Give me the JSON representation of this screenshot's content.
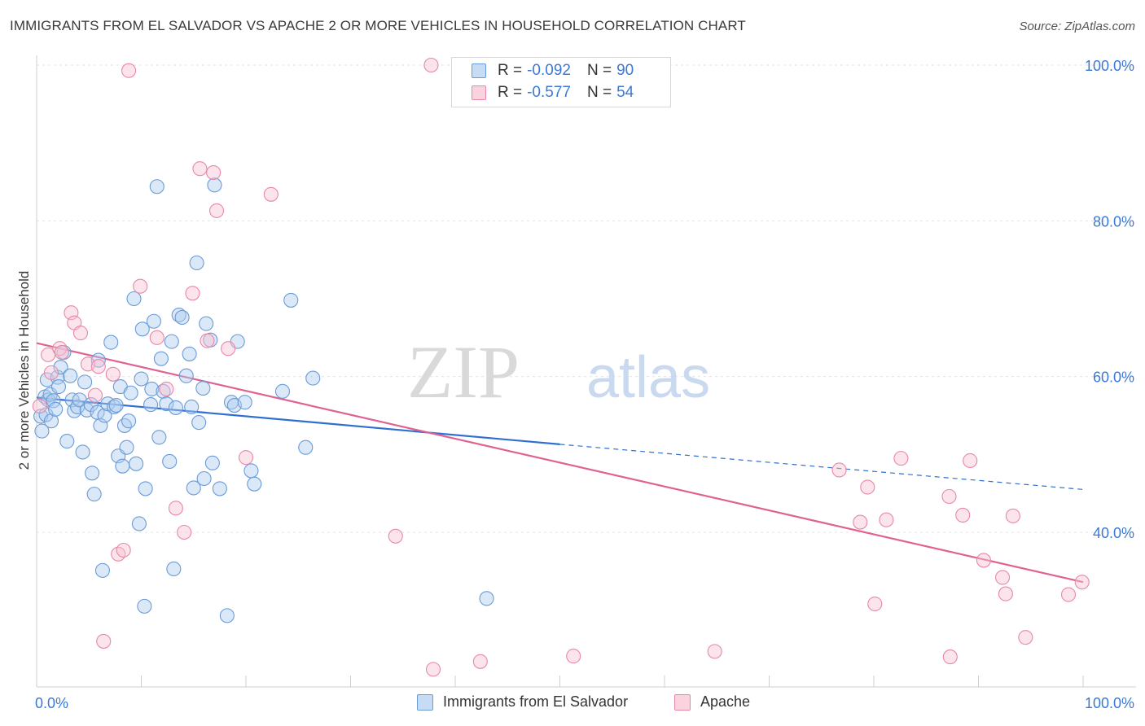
{
  "title": "IMMIGRANTS FROM EL SALVADOR VS APACHE 2 OR MORE VEHICLES IN HOUSEHOLD CORRELATION CHART",
  "source": "Source: ZipAtlas.com",
  "watermark": {
    "zip": "ZIP",
    "atlas": "atlas"
  },
  "legend_top": {
    "rows": [
      {
        "r_label": "R =",
        "r_value": "-0.092",
        "n_label": "N =",
        "n_value": "90",
        "color": "#9bbfe8",
        "border": "#6a9bd8"
      },
      {
        "r_label": "R =",
        "r_value": "-0.577",
        "n_label": "N =",
        "n_value": "54",
        "color": "#f4b7c9",
        "border": "#e888a6"
      }
    ]
  },
  "legend_bottom": [
    {
      "label": "Immigrants from El Salvador",
      "color": "#c5dcf4",
      "border": "#6a9bd8"
    },
    {
      "label": "Apache",
      "color": "#fbd3df",
      "border": "#e888a6"
    }
  ],
  "chart_data": {
    "type": "scatter",
    "xlabel": "",
    "ylabel": "2 or more Vehicles in Household",
    "xlim": [
      0,
      100
    ],
    "ylim": [
      18,
      102
    ],
    "x_tick_labels": [
      "0.0%",
      "100.0%"
    ],
    "y_tick_labels": [
      "40.0%",
      "60.0%",
      "80.0%",
      "100.0%"
    ],
    "y_tick_values": [
      40,
      60,
      80,
      100
    ],
    "grid": true,
    "series": [
      {
        "name": "Immigrants from El Salvador",
        "color": "#6a9bd8",
        "fill": "#aecbef",
        "trend": {
          "x": [
            0,
            50
          ],
          "y": [
            57.3,
            51.3
          ],
          "dashed_to": [
            100,
            45.5
          ],
          "color": "#2f6fd0"
        },
        "points": [
          [
            0.4,
            54.9
          ],
          [
            0.5,
            53.0
          ],
          [
            0.8,
            57.4
          ],
          [
            0.9,
            55.1
          ],
          [
            1.0,
            59.6
          ],
          [
            1.1,
            57.0
          ],
          [
            1.3,
            57.7
          ],
          [
            1.4,
            54.3
          ],
          [
            1.6,
            56.9
          ],
          [
            1.8,
            55.8
          ],
          [
            2.0,
            59.9
          ],
          [
            2.1,
            58.7
          ],
          [
            2.3,
            61.2
          ],
          [
            2.6,
            63.1
          ],
          [
            2.9,
            51.7
          ],
          [
            3.2,
            60.1
          ],
          [
            3.4,
            57.0
          ],
          [
            3.6,
            55.6
          ],
          [
            3.9,
            56.1
          ],
          [
            4.1,
            57.0
          ],
          [
            4.4,
            50.3
          ],
          [
            4.6,
            59.3
          ],
          [
            4.8,
            55.7
          ],
          [
            5.2,
            56.4
          ],
          [
            5.3,
            47.6
          ],
          [
            5.5,
            44.9
          ],
          [
            5.8,
            55.4
          ],
          [
            5.9,
            62.1
          ],
          [
            6.1,
            53.7
          ],
          [
            6.3,
            35.1
          ],
          [
            6.5,
            55.0
          ],
          [
            6.8,
            56.5
          ],
          [
            7.1,
            64.4
          ],
          [
            7.4,
            56.1
          ],
          [
            7.6,
            56.3
          ],
          [
            7.8,
            49.8
          ],
          [
            8.0,
            58.7
          ],
          [
            8.2,
            48.5
          ],
          [
            8.4,
            53.7
          ],
          [
            8.6,
            50.9
          ],
          [
            8.8,
            54.3
          ],
          [
            9.0,
            57.9
          ],
          [
            9.3,
            70.0
          ],
          [
            9.5,
            48.8
          ],
          [
            9.8,
            41.1
          ],
          [
            10.0,
            59.7
          ],
          [
            10.1,
            66.1
          ],
          [
            10.3,
            30.5
          ],
          [
            10.4,
            45.6
          ],
          [
            10.9,
            56.4
          ],
          [
            11.0,
            58.4
          ],
          [
            11.2,
            67.1
          ],
          [
            11.5,
            84.4
          ],
          [
            11.7,
            52.2
          ],
          [
            11.9,
            62.3
          ],
          [
            12.1,
            58.1
          ],
          [
            12.4,
            56.5
          ],
          [
            12.7,
            49.1
          ],
          [
            12.9,
            64.5
          ],
          [
            13.1,
            35.3
          ],
          [
            13.3,
            56.0
          ],
          [
            13.6,
            67.9
          ],
          [
            13.9,
            67.6
          ],
          [
            14.3,
            60.1
          ],
          [
            14.6,
            62.9
          ],
          [
            14.8,
            56.1
          ],
          [
            15.0,
            45.7
          ],
          [
            15.3,
            74.6
          ],
          [
            15.5,
            54.1
          ],
          [
            15.9,
            58.5
          ],
          [
            16.0,
            46.9
          ],
          [
            16.2,
            66.8
          ],
          [
            16.6,
            64.7
          ],
          [
            16.8,
            48.9
          ],
          [
            17.0,
            84.6
          ],
          [
            17.5,
            45.6
          ],
          [
            18.2,
            29.3
          ],
          [
            18.6,
            56.7
          ],
          [
            18.9,
            56.3
          ],
          [
            19.2,
            64.5
          ],
          [
            19.9,
            56.7
          ],
          [
            20.5,
            47.9
          ],
          [
            20.8,
            46.2
          ],
          [
            23.5,
            58.1
          ],
          [
            24.3,
            69.8
          ],
          [
            25.7,
            50.9
          ],
          [
            26.4,
            59.8
          ],
          [
            43.0,
            31.5
          ]
        ]
      },
      {
        "name": "Apache",
        "color": "#e888a6",
        "fill": "#f7c4d3",
        "trend": {
          "x": [
            0,
            100
          ],
          "y": [
            64.3,
            33.6
          ],
          "color": "#e06292"
        },
        "points": [
          [
            0.3,
            56.2
          ],
          [
            1.1,
            62.8
          ],
          [
            1.4,
            60.5
          ],
          [
            2.2,
            63.6
          ],
          [
            2.4,
            63.1
          ],
          [
            3.3,
            68.2
          ],
          [
            3.6,
            66.9
          ],
          [
            4.2,
            65.6
          ],
          [
            4.9,
            61.6
          ],
          [
            5.6,
            57.6
          ],
          [
            5.9,
            61.3
          ],
          [
            6.4,
            26.0
          ],
          [
            7.3,
            60.3
          ],
          [
            7.8,
            37.2
          ],
          [
            8.3,
            37.7
          ],
          [
            8.8,
            99.3
          ],
          [
            9.9,
            71.6
          ],
          [
            11.5,
            65.0
          ],
          [
            12.4,
            58.4
          ],
          [
            13.3,
            43.1
          ],
          [
            14.1,
            40.0
          ],
          [
            14.9,
            70.7
          ],
          [
            15.6,
            86.7
          ],
          [
            16.3,
            64.6
          ],
          [
            16.9,
            86.2
          ],
          [
            17.2,
            81.3
          ],
          [
            18.3,
            63.6
          ],
          [
            20.0,
            49.6
          ],
          [
            22.4,
            83.4
          ],
          [
            34.3,
            39.5
          ],
          [
            37.9,
            22.4
          ],
          [
            37.7,
            100.0
          ],
          [
            42.4,
            23.4
          ],
          [
            51.3,
            24.1
          ],
          [
            64.8,
            24.7
          ],
          [
            76.7,
            48.0
          ],
          [
            78.7,
            41.3
          ],
          [
            79.4,
            45.8
          ],
          [
            80.1,
            30.8
          ],
          [
            81.2,
            41.6
          ],
          [
            82.6,
            49.5
          ],
          [
            87.2,
            44.6
          ],
          [
            87.3,
            24.0
          ],
          [
            88.5,
            42.2
          ],
          [
            89.2,
            49.2
          ],
          [
            90.5,
            36.4
          ],
          [
            92.3,
            34.2
          ],
          [
            92.6,
            32.1
          ],
          [
            93.3,
            42.1
          ],
          [
            94.5,
            26.5
          ],
          [
            98.6,
            32.0
          ],
          [
            99.9,
            33.6
          ]
        ]
      }
    ]
  }
}
